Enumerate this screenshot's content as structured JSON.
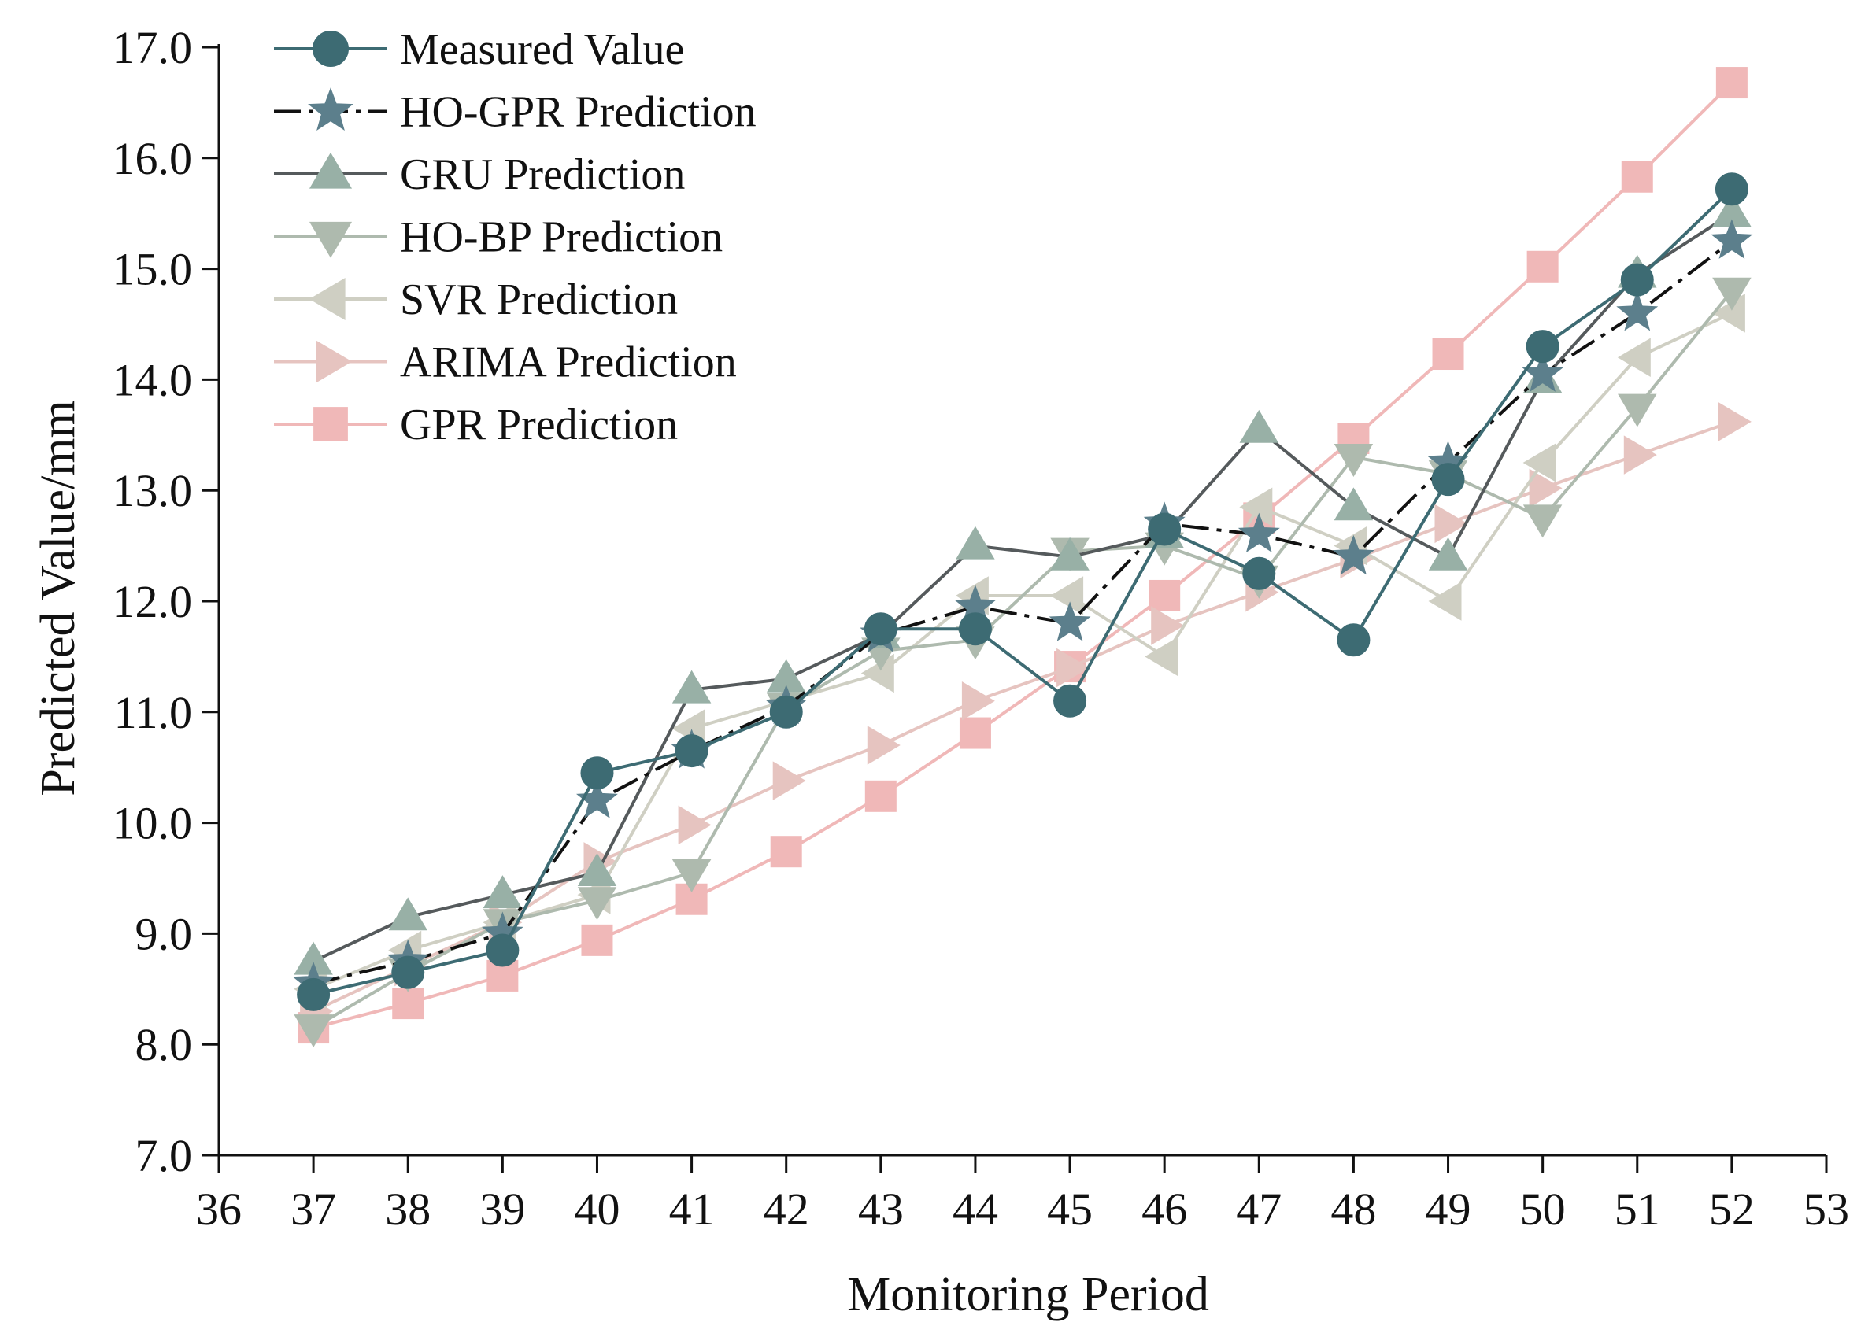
{
  "chart_data": {
    "type": "line",
    "title": "",
    "xlabel": "Monitoring Period",
    "ylabel": "Predicted Value/mm",
    "xlim": [
      36,
      53
    ],
    "ylim": [
      7.0,
      17.0
    ],
    "x_ticks": [
      36,
      37,
      38,
      39,
      40,
      41,
      42,
      43,
      44,
      45,
      46,
      47,
      48,
      49,
      50,
      51,
      52,
      53
    ],
    "x_tick_labels": [
      "36",
      "37",
      "38",
      "39",
      "40",
      "41",
      "42",
      "43",
      "44",
      "45",
      "46",
      "47",
      "48",
      "49",
      "50",
      "51",
      "52",
      "53"
    ],
    "y_ticks": [
      7,
      8,
      9,
      10,
      11,
      12,
      13,
      14,
      15,
      16,
      17
    ],
    "y_tick_labels": [
      "7.0",
      "8.0",
      "9.0",
      "10.0",
      "11.0",
      "12.0",
      "13.0",
      "14.0",
      "15.0",
      "16.0",
      "17.0"
    ],
    "grid": false,
    "legend_position": "top-left",
    "x": [
      37,
      38,
      39,
      40,
      41,
      42,
      43,
      44,
      45,
      46,
      47,
      48,
      49,
      50,
      51,
      52
    ],
    "series": [
      {
        "name": "GPR Prediction",
        "color": "#f0b8b8",
        "line_color": "#f0b8b8",
        "marker": "square",
        "values": [
          8.15,
          8.37,
          8.62,
          8.94,
          9.31,
          9.74,
          10.24,
          10.81,
          11.41,
          12.05,
          12.75,
          13.47,
          14.23,
          15.02,
          15.83,
          16.68
        ]
      },
      {
        "name": "ARIMA Prediction",
        "color": "#e6c4c0",
        "line_color": "#e6c4c0",
        "marker": "triangle-right",
        "values": [
          8.3,
          8.7,
          9.1,
          9.65,
          9.98,
          10.38,
          10.7,
          11.1,
          11.4,
          11.78,
          12.08,
          12.38,
          12.7,
          13.02,
          13.32,
          13.62
        ]
      },
      {
        "name": "SVR Prediction",
        "color": "#cfcfc3",
        "line_color": "#cfcfc3",
        "marker": "triangle-left",
        "values": [
          8.5,
          8.85,
          9.1,
          9.35,
          10.85,
          11.1,
          11.35,
          12.05,
          12.05,
          11.5,
          12.85,
          12.5,
          12.0,
          13.25,
          14.2,
          14.6
        ]
      },
      {
        "name": "HO-BP Prediction",
        "color": "#aebaae",
        "line_color": "#aebaae",
        "marker": "triangle-down",
        "values": [
          8.15,
          8.65,
          9.1,
          9.3,
          9.55,
          11.05,
          11.55,
          11.65,
          12.45,
          12.5,
          12.2,
          13.3,
          13.15,
          12.75,
          13.75,
          14.8
        ]
      },
      {
        "name": "GRU Prediction",
        "color": "#98b0a6",
        "line_color": "#555a5c",
        "marker": "triangle-up",
        "values": [
          8.75,
          9.15,
          9.35,
          9.55,
          11.2,
          11.3,
          11.7,
          12.5,
          12.4,
          12.6,
          13.55,
          12.85,
          12.4,
          14.0,
          14.95,
          15.5
        ]
      },
      {
        "name": "HO-GPR Prediction",
        "color": "#5c7f8c",
        "line_color": "#111111",
        "marker": "star",
        "dashed": true,
        "values": [
          8.55,
          8.75,
          9.0,
          10.2,
          10.65,
          11.05,
          11.7,
          11.95,
          11.8,
          12.7,
          12.6,
          12.4,
          13.25,
          14.05,
          14.6,
          15.25
        ]
      },
      {
        "name": "Measured Value",
        "color": "#3d6b73",
        "line_color": "#3d6b73",
        "marker": "circle",
        "values": [
          8.45,
          8.65,
          8.85,
          10.45,
          10.65,
          11.0,
          11.75,
          11.75,
          11.1,
          12.65,
          12.25,
          11.65,
          13.1,
          14.3,
          14.9,
          15.72
        ]
      }
    ],
    "legend_order": [
      "Measured Value",
      "HO-GPR Prediction",
      "GRU Prediction",
      "HO-BP Prediction",
      "SVR Prediction",
      "ARIMA Prediction",
      "GPR Prediction"
    ]
  }
}
